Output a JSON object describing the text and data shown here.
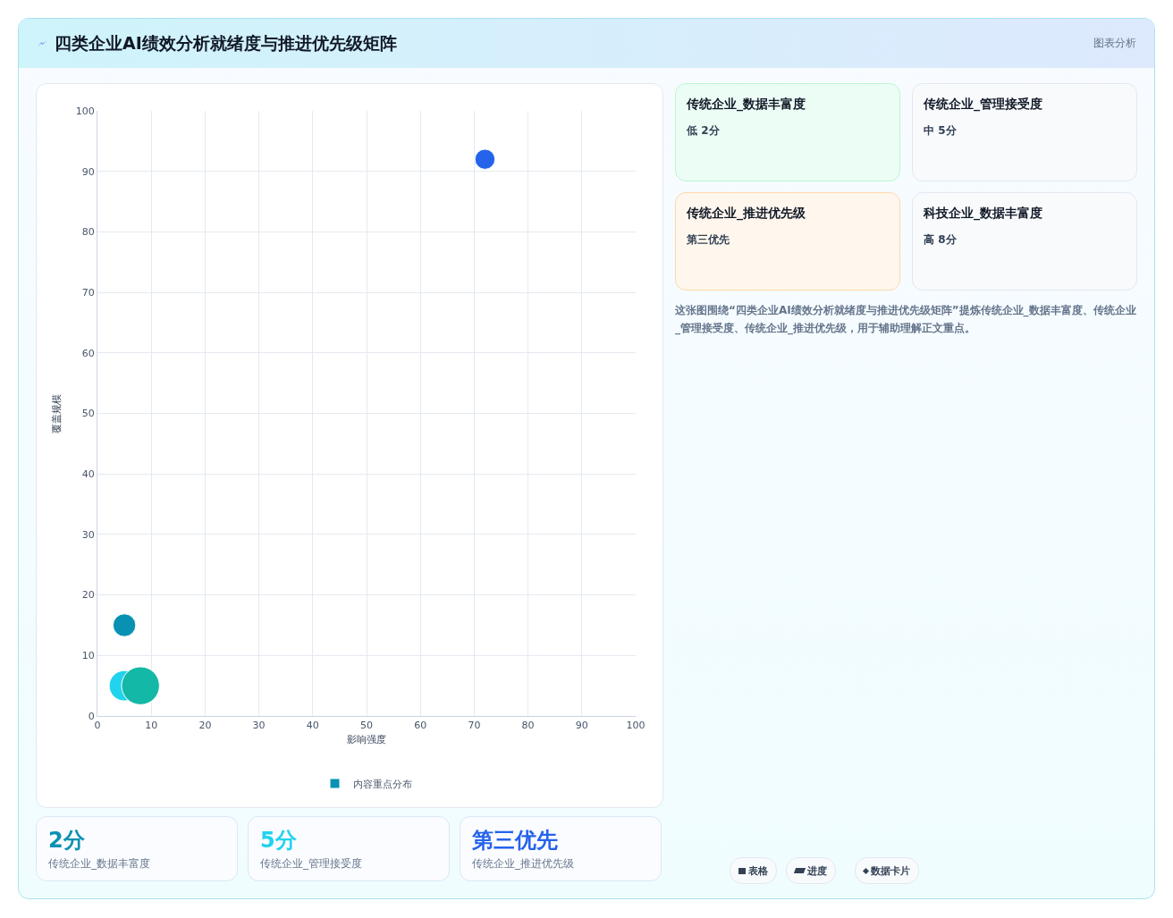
{
  "chart_data": {
    "type": "bubble",
    "title": "四类企业AI绩效分析就绪度与推进优先级矩阵",
    "xlabel": "影响强度",
    "ylabel": "覆盖规模",
    "series": [
      {
        "name": "内容重点分布",
        "color": "#0891b2",
        "colors": [
          "#0891b2",
          "#22d3ee",
          "#14b8a6",
          "#2563eb"
        ],
        "x": [
          5,
          5,
          8,
          72
        ],
        "values": [
          15,
          5,
          5,
          92
        ],
        "sizes": [
          0.36,
          0.64,
          1,
          0.28
        ]
      }
    ],
    "xlim": [
      0,
      100
    ],
    "xticks": [
      0,
      10,
      20,
      30,
      40,
      50,
      60,
      70,
      80,
      90,
      100
    ],
    "ylim": [
      0,
      100
    ],
    "yticks": [
      0,
      10,
      20,
      30,
      40,
      50,
      60,
      70,
      80,
      90,
      100
    ],
    "grid": true,
    "legend": "bottom",
    "marker": "circle",
    "annotations": [
      "图表分析",
      "传统企业_数据丰富度",
      "低 2分",
      "传统企业_管理接受度",
      "中 5分",
      "传统企业_推进优先级",
      "第三优先",
      "科技企业_数据丰富度",
      "高 8分",
      "这张图围绕“四类企业AI绩效分析就绪度与推进优先级矩阵”提炼传统企业_数据丰富度、传统企业_管理接受度、传统企业_推进优先级，用于辅助理解正文重点。",
      "2分",
      "传统企业_数据丰富度",
      "5分",
      "传统企业_管理接受度",
      "第三优先",
      "传统企业_推进优先级",
      "表格",
      "进度",
      "数据卡片"
    ]
  }
}
